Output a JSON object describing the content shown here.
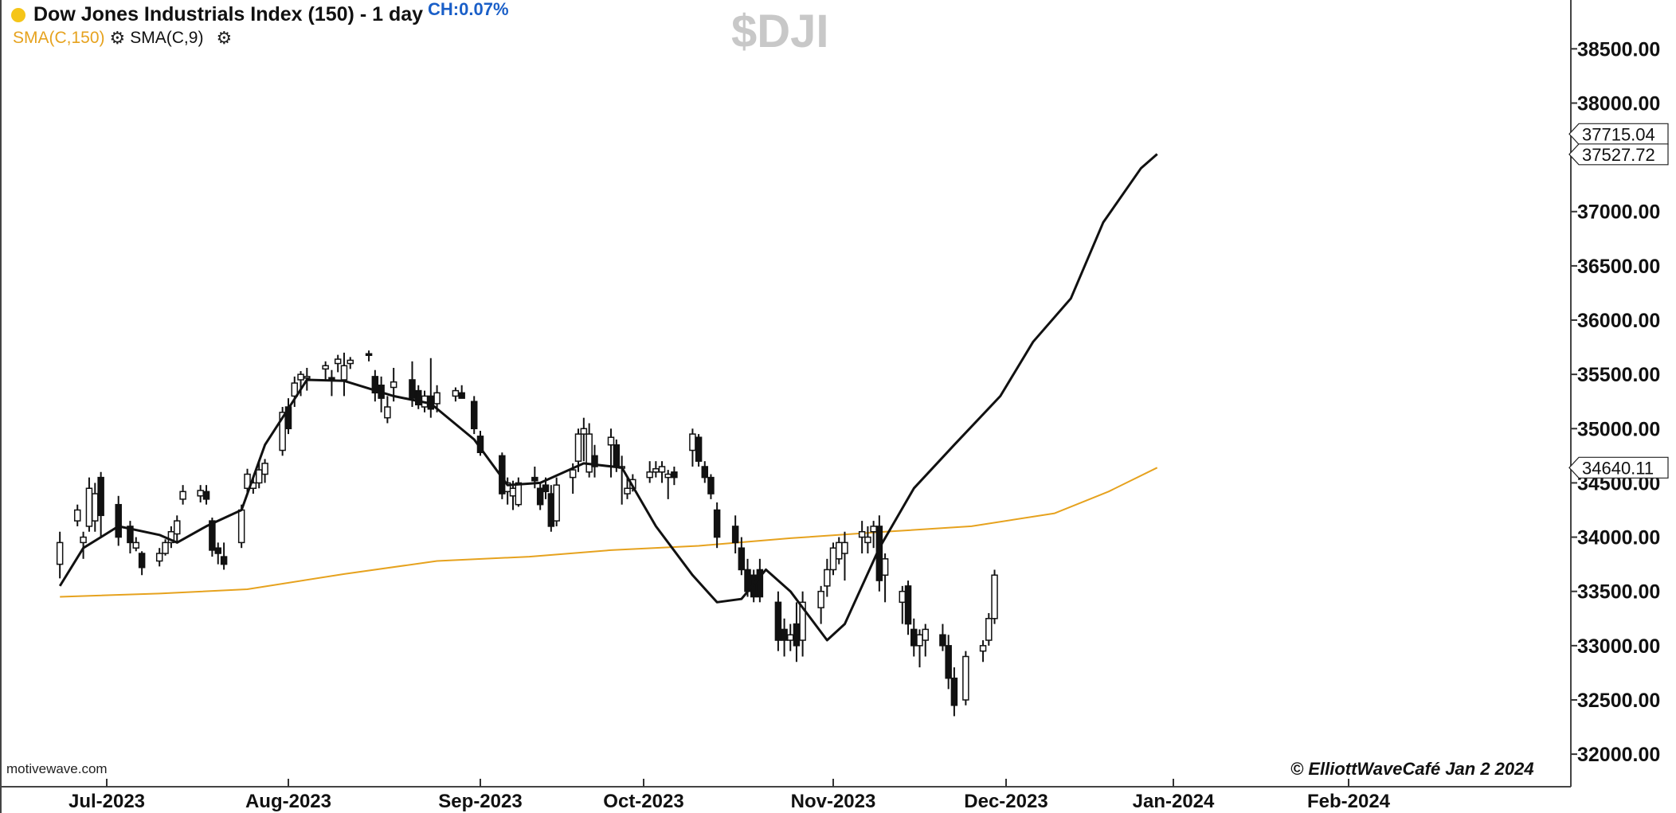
{
  "header": {
    "title": "Dow Jones Industrials Index (150) - 1 day",
    "change": "CH:0.07%",
    "symbol": "$DJI",
    "indicators": [
      {
        "label": "SMA(C,150)",
        "color": "#e6a21e"
      },
      {
        "label": "SMA(C,9)",
        "color": "#111111"
      }
    ]
  },
  "footer": {
    "source": "motivewave.com",
    "copyright": "© ElliottWaveCafé Jan 2 2024"
  },
  "chart_data": {
    "type": "candlestick",
    "title": "Dow Jones Industrials Index (150) - 1 day",
    "symbol": "$DJI",
    "y_axis": {
      "ticks": [
        "32000.00",
        "32500.00",
        "33000.00",
        "33500.00",
        "34000.00",
        "34500.00",
        "35000.00",
        "35500.00",
        "36000.00",
        "36500.00",
        "37000.00",
        "37500.00",
        "38000.00",
        "38500.00"
      ],
      "range": [
        31700,
        38950
      ]
    },
    "x_axis": {
      "ticks": [
        "Jul-2023",
        "Aug-2023",
        "Sep-2023",
        "Oct-2023",
        "Nov-2023",
        "Dec-2023",
        "Jan-2024",
        "Feb-2024"
      ]
    },
    "price_labels": [
      {
        "text": "37715.04",
        "value": 37715.04
      },
      {
        "text": "37527.72",
        "value": 37527.72
      },
      {
        "text": "34640.11",
        "value": 34640.11
      }
    ],
    "series": [
      {
        "name": "SMA(C,150)",
        "color": "#e6a21e",
        "values": [
          {
            "date": "2023-06-23",
            "v": 33450
          },
          {
            "date": "2023-07-10",
            "v": 33480
          },
          {
            "date": "2023-07-25",
            "v": 33520
          },
          {
            "date": "2023-08-10",
            "v": 33660
          },
          {
            "date": "2023-08-25",
            "v": 33780
          },
          {
            "date": "2023-09-10",
            "v": 33820
          },
          {
            "date": "2023-09-25",
            "v": 33880
          },
          {
            "date": "2023-10-10",
            "v": 33920
          },
          {
            "date": "2023-10-25",
            "v": 33990
          },
          {
            "date": "2023-11-10",
            "v": 34050
          },
          {
            "date": "2023-11-25",
            "v": 34100
          },
          {
            "date": "2023-12-10",
            "v": 34220
          },
          {
            "date": "2023-12-20",
            "v": 34420
          },
          {
            "date": "2023-12-29",
            "v": 34640
          }
        ]
      },
      {
        "name": "SMA(C,9)",
        "color": "#111111",
        "values": [
          {
            "date": "2023-06-23",
            "v": 33550
          },
          {
            "date": "2023-06-27",
            "v": 33900
          },
          {
            "date": "2023-07-03",
            "v": 34100
          },
          {
            "date": "2023-07-10",
            "v": 34020
          },
          {
            "date": "2023-07-13",
            "v": 33950
          },
          {
            "date": "2023-07-18",
            "v": 34100
          },
          {
            "date": "2023-07-24",
            "v": 34250
          },
          {
            "date": "2023-07-28",
            "v": 34850
          },
          {
            "date": "2023-08-04",
            "v": 35450
          },
          {
            "date": "2023-08-10",
            "v": 35440
          },
          {
            "date": "2023-08-18",
            "v": 35300
          },
          {
            "date": "2023-08-24",
            "v": 35230
          },
          {
            "date": "2023-08-31",
            "v": 34900
          },
          {
            "date": "2023-09-06",
            "v": 34480
          },
          {
            "date": "2023-09-12",
            "v": 34500
          },
          {
            "date": "2023-09-20",
            "v": 34680
          },
          {
            "date": "2023-09-27",
            "v": 34640
          },
          {
            "date": "2023-10-03",
            "v": 34100
          },
          {
            "date": "2023-10-09",
            "v": 33650
          },
          {
            "date": "2023-10-13",
            "v": 33400
          },
          {
            "date": "2023-10-17",
            "v": 33430
          },
          {
            "date": "2023-10-21",
            "v": 33700
          },
          {
            "date": "2023-10-25",
            "v": 33500
          },
          {
            "date": "2023-10-31",
            "v": 33050
          },
          {
            "date": "2023-11-03",
            "v": 33200
          },
          {
            "date": "2023-11-09",
            "v": 33900
          },
          {
            "date": "2023-11-15",
            "v": 34450
          },
          {
            "date": "2023-11-22",
            "v": 34850
          },
          {
            "date": "2023-11-30",
            "v": 35300
          },
          {
            "date": "2023-12-06",
            "v": 35800
          },
          {
            "date": "2023-12-13",
            "v": 36200
          },
          {
            "date": "2023-12-19",
            "v": 36900
          },
          {
            "date": "2023-12-26",
            "v": 37400
          },
          {
            "date": "2023-12-29",
            "v": 37530
          }
        ]
      }
    ],
    "candles": [
      {
        "date": "2023-06-23",
        "o": 33750,
        "h": 34050,
        "l": 33620,
        "c": 33950
      },
      {
        "date": "2023-06-26",
        "o": 34150,
        "h": 34300,
        "l": 34100,
        "c": 34250
      },
      {
        "date": "2023-06-27",
        "o": 33950,
        "h": 34050,
        "l": 33800,
        "c": 34000
      },
      {
        "date": "2023-06-28",
        "o": 34100,
        "h": 34550,
        "l": 34050,
        "c": 34450
      },
      {
        "date": "2023-06-29",
        "o": 34150,
        "h": 34500,
        "l": 34050,
        "c": 34400
      },
      {
        "date": "2023-06-30",
        "o": 34550,
        "h": 34600,
        "l": 34000,
        "c": 34200
      },
      {
        "date": "2023-07-03",
        "o": 34300,
        "h": 34380,
        "l": 33920,
        "c": 34000
      },
      {
        "date": "2023-07-05",
        "o": 34100,
        "h": 34150,
        "l": 33850,
        "c": 33950
      },
      {
        "date": "2023-07-06",
        "o": 33900,
        "h": 34000,
        "l": 33870,
        "c": 33950
      },
      {
        "date": "2023-07-07",
        "o": 33850,
        "h": 33870,
        "l": 33650,
        "c": 33720
      },
      {
        "date": "2023-07-10",
        "o": 33780,
        "h": 33900,
        "l": 33730,
        "c": 33850
      },
      {
        "date": "2023-07-11",
        "o": 33850,
        "h": 33980,
        "l": 33830,
        "c": 33950
      },
      {
        "date": "2023-07-12",
        "o": 33950,
        "h": 34100,
        "l": 33900,
        "c": 34050
      },
      {
        "date": "2023-07-13",
        "o": 34030,
        "h": 34200,
        "l": 33950,
        "c": 34150
      },
      {
        "date": "2023-07-14",
        "o": 34350,
        "h": 34480,
        "l": 34300,
        "c": 34420
      },
      {
        "date": "2023-07-17",
        "o": 34380,
        "h": 34480,
        "l": 34320,
        "c": 34430
      },
      {
        "date": "2023-07-18",
        "o": 34420,
        "h": 34480,
        "l": 34300,
        "c": 34350
      },
      {
        "date": "2023-07-19",
        "o": 34150,
        "h": 34180,
        "l": 33820,
        "c": 33880
      },
      {
        "date": "2023-07-20",
        "o": 33900,
        "h": 33950,
        "l": 33750,
        "c": 33850
      },
      {
        "date": "2023-07-21",
        "o": 33820,
        "h": 33950,
        "l": 33700,
        "c": 33750
      },
      {
        "date": "2023-07-24",
        "o": 33950,
        "h": 34300,
        "l": 33900,
        "c": 34250
      },
      {
        "date": "2023-07-25",
        "o": 34450,
        "h": 34630,
        "l": 34400,
        "c": 34580
      },
      {
        "date": "2023-07-26",
        "o": 34450,
        "h": 34550,
        "l": 34400,
        "c": 34500
      },
      {
        "date": "2023-07-27",
        "o": 34500,
        "h": 34700,
        "l": 34450,
        "c": 34620
      },
      {
        "date": "2023-07-28",
        "o": 34580,
        "h": 34720,
        "l": 34500,
        "c": 34680
      },
      {
        "date": "2023-07-31",
        "o": 34800,
        "h": 35200,
        "l": 34750,
        "c": 35150
      },
      {
        "date": "2023-08-01",
        "o": 35200,
        "h": 35280,
        "l": 34950,
        "c": 35000
      },
      {
        "date": "2023-08-02",
        "o": 35300,
        "h": 35480,
        "l": 35200,
        "c": 35420
      },
      {
        "date": "2023-08-03",
        "o": 35450,
        "h": 35530,
        "l": 35300,
        "c": 35500
      },
      {
        "date": "2023-08-04",
        "o": 35480,
        "h": 35560,
        "l": 35350,
        "c": 35480
      },
      {
        "date": "2023-08-07",
        "o": 35550,
        "h": 35620,
        "l": 35450,
        "c": 35580
      },
      {
        "date": "2023-08-08",
        "o": 35470,
        "h": 35540,
        "l": 35300,
        "c": 35450
      },
      {
        "date": "2023-08-09",
        "o": 35600,
        "h": 35680,
        "l": 35520,
        "c": 35640
      },
      {
        "date": "2023-08-10",
        "o": 35450,
        "h": 35700,
        "l": 35300,
        "c": 35580
      },
      {
        "date": "2023-08-11",
        "o": 35600,
        "h": 35660,
        "l": 35550,
        "c": 35630
      },
      {
        "date": "2023-08-14",
        "o": 35690,
        "h": 35720,
        "l": 35620,
        "c": 35680
      },
      {
        "date": "2023-08-15",
        "o": 35480,
        "h": 35540,
        "l": 35250,
        "c": 35330
      },
      {
        "date": "2023-08-16",
        "o": 35400,
        "h": 35480,
        "l": 35150,
        "c": 35280
      },
      {
        "date": "2023-08-17",
        "o": 35100,
        "h": 35300,
        "l": 35050,
        "c": 35200
      },
      {
        "date": "2023-08-18",
        "o": 35380,
        "h": 35560,
        "l": 35250,
        "c": 35430
      },
      {
        "date": "2023-08-21",
        "o": 35450,
        "h": 35620,
        "l": 35200,
        "c": 35280
      },
      {
        "date": "2023-08-22",
        "o": 35350,
        "h": 35400,
        "l": 35180,
        "c": 35220
      },
      {
        "date": "2023-08-23",
        "o": 35200,
        "h": 35350,
        "l": 35150,
        "c": 35300
      },
      {
        "date": "2023-08-24",
        "o": 35300,
        "h": 35650,
        "l": 35100,
        "c": 35180
      },
      {
        "date": "2023-08-25",
        "o": 35230,
        "h": 35400,
        "l": 35150,
        "c": 35330
      },
      {
        "date": "2023-08-28",
        "o": 35300,
        "h": 35380,
        "l": 35250,
        "c": 35350
      },
      {
        "date": "2023-08-29",
        "o": 35330,
        "h": 35400,
        "l": 35280,
        "c": 35280
      },
      {
        "date": "2023-08-31",
        "o": 35250,
        "h": 35300,
        "l": 34950,
        "c": 35000
      },
      {
        "date": "2023-09-01",
        "o": 34930,
        "h": 34980,
        "l": 34750,
        "c": 34780
      },
      {
        "date": "2023-09-05",
        "o": 34750,
        "h": 34780,
        "l": 34350,
        "c": 34400
      },
      {
        "date": "2023-09-06",
        "o": 34420,
        "h": 34550,
        "l": 34300,
        "c": 34500
      },
      {
        "date": "2023-09-07",
        "o": 34380,
        "h": 34520,
        "l": 34250,
        "c": 34450
      },
      {
        "date": "2023-09-08",
        "o": 34300,
        "h": 34550,
        "l": 34280,
        "c": 34500
      },
      {
        "date": "2023-09-11",
        "o": 34550,
        "h": 34650,
        "l": 34450,
        "c": 34520
      },
      {
        "date": "2023-09-12",
        "o": 34450,
        "h": 34500,
        "l": 34250,
        "c": 34300
      },
      {
        "date": "2023-09-13",
        "o": 34480,
        "h": 34550,
        "l": 34350,
        "c": 34420
      },
      {
        "date": "2023-09-14",
        "o": 34400,
        "h": 34480,
        "l": 34050,
        "c": 34100
      },
      {
        "date": "2023-09-15",
        "o": 34150,
        "h": 34550,
        "l": 34100,
        "c": 34480
      },
      {
        "date": "2023-09-18",
        "o": 34550,
        "h": 34680,
        "l": 34400,
        "c": 34620
      },
      {
        "date": "2023-09-19",
        "o": 34700,
        "h": 35000,
        "l": 34600,
        "c": 34950
      },
      {
        "date": "2023-09-20",
        "o": 34950,
        "h": 35100,
        "l": 34700,
        "c": 35000
      },
      {
        "date": "2023-09-21",
        "o": 34600,
        "h": 35050,
        "l": 34550,
        "c": 34950
      },
      {
        "date": "2023-09-22",
        "o": 34750,
        "h": 34850,
        "l": 34550,
        "c": 34650
      },
      {
        "date": "2023-09-25",
        "o": 34850,
        "h": 35000,
        "l": 34550,
        "c": 34920
      },
      {
        "date": "2023-09-26",
        "o": 34850,
        "h": 34900,
        "l": 34600,
        "c": 34650
      },
      {
        "date": "2023-09-27",
        "o": 34650,
        "h": 34750,
        "l": 34300,
        "c": 34650
      },
      {
        "date": "2023-09-28",
        "o": 34400,
        "h": 34550,
        "l": 34350,
        "c": 34450
      },
      {
        "date": "2023-09-29",
        "o": 34450,
        "h": 34580,
        "l": 34420,
        "c": 34530
      },
      {
        "date": "2023-10-02",
        "o": 34550,
        "h": 34700,
        "l": 34500,
        "c": 34600
      },
      {
        "date": "2023-10-03",
        "o": 34600,
        "h": 34700,
        "l": 34550,
        "c": 34630
      },
      {
        "date": "2023-10-04",
        "o": 34600,
        "h": 34700,
        "l": 34500,
        "c": 34650
      },
      {
        "date": "2023-10-05",
        "o": 34550,
        "h": 34620,
        "l": 34350,
        "c": 34580
      },
      {
        "date": "2023-10-06",
        "o": 34600,
        "h": 34650,
        "l": 34480,
        "c": 34550
      },
      {
        "date": "2023-10-09",
        "o": 34800,
        "h": 35000,
        "l": 34650,
        "c": 34950
      },
      {
        "date": "2023-10-10",
        "o": 34920,
        "h": 34950,
        "l": 34650,
        "c": 34700
      },
      {
        "date": "2023-10-11",
        "o": 34650,
        "h": 34700,
        "l": 34500,
        "c": 34550
      },
      {
        "date": "2023-10-12",
        "o": 34550,
        "h": 34580,
        "l": 34350,
        "c": 34400
      },
      {
        "date": "2023-10-13",
        "o": 34250,
        "h": 34320,
        "l": 33900,
        "c": 34000
      },
      {
        "date": "2023-10-16",
        "o": 34100,
        "h": 34200,
        "l": 33850,
        "c": 33950
      },
      {
        "date": "2023-10-17",
        "o": 33900,
        "h": 34000,
        "l": 33650,
        "c": 33700
      },
      {
        "date": "2023-10-18",
        "o": 33700,
        "h": 33800,
        "l": 33450,
        "c": 33500
      },
      {
        "date": "2023-10-19",
        "o": 33650,
        "h": 33700,
        "l": 33400,
        "c": 33450
      },
      {
        "date": "2023-10-20",
        "o": 33700,
        "h": 33800,
        "l": 33400,
        "c": 33450
      },
      {
        "date": "2023-10-23",
        "o": 33400,
        "h": 33500,
        "l": 32950,
        "c": 33050
      },
      {
        "date": "2023-10-24",
        "o": 33150,
        "h": 33250,
        "l": 32900,
        "c": 33050
      },
      {
        "date": "2023-10-25",
        "o": 33050,
        "h": 33200,
        "l": 32950,
        "c": 33100
      },
      {
        "date": "2023-10-26",
        "o": 33200,
        "h": 33400,
        "l": 32850,
        "c": 33000
      },
      {
        "date": "2023-10-27",
        "o": 33050,
        "h": 33500,
        "l": 32900,
        "c": 33400
      },
      {
        "date": "2023-10-30",
        "o": 33350,
        "h": 33550,
        "l": 33200,
        "c": 33500
      },
      {
        "date": "2023-10-31",
        "o": 33550,
        "h": 33800,
        "l": 33450,
        "c": 33700
      },
      {
        "date": "2023-11-01",
        "o": 33700,
        "h": 33950,
        "l": 33650,
        "c": 33900
      },
      {
        "date": "2023-11-02",
        "o": 33800,
        "h": 34000,
        "l": 33750,
        "c": 33950
      },
      {
        "date": "2023-11-03",
        "o": 33850,
        "h": 34050,
        "l": 33600,
        "c": 33950
      },
      {
        "date": "2023-11-06",
        "o": 34000,
        "h": 34150,
        "l": 33850,
        "c": 34050
      },
      {
        "date": "2023-11-07",
        "o": 33950,
        "h": 34100,
        "l": 33850,
        "c": 34000
      },
      {
        "date": "2023-11-08",
        "o": 34050,
        "h": 34150,
        "l": 33900,
        "c": 34100
      },
      {
        "date": "2023-11-09",
        "o": 34100,
        "h": 34200,
        "l": 33500,
        "c": 33600
      },
      {
        "date": "2023-11-10",
        "o": 33650,
        "h": 33850,
        "l": 33400,
        "c": 33800
      },
      {
        "date": "2023-11-13",
        "o": 33400,
        "h": 33550,
        "l": 33200,
        "c": 33500
      },
      {
        "date": "2023-11-14",
        "o": 33550,
        "h": 33600,
        "l": 33100,
        "c": 33200
      },
      {
        "date": "2023-11-15",
        "o": 33150,
        "h": 33250,
        "l": 32900,
        "c": 33000
      },
      {
        "date": "2023-11-16",
        "o": 33000,
        "h": 33150,
        "l": 32800,
        "c": 33100
      },
      {
        "date": "2023-11-17",
        "o": 33050,
        "h": 33200,
        "l": 32900,
        "c": 33150
      },
      {
        "date": "2023-11-20",
        "o": 33100,
        "h": 33200,
        "l": 32950,
        "c": 33000
      },
      {
        "date": "2023-11-21",
        "o": 33000,
        "h": 33100,
        "l": 32600,
        "c": 32700
      },
      {
        "date": "2023-11-22",
        "o": 32700,
        "h": 32800,
        "l": 32350,
        "c": 32450
      },
      {
        "date": "2023-11-24",
        "o": 32500,
        "h": 32950,
        "l": 32450,
        "c": 32900
      },
      {
        "date": "2023-11-27",
        "o": 32950,
        "h": 33050,
        "l": 32850,
        "c": 33000
      },
      {
        "date": "2023-11-28",
        "o": 33050,
        "h": 33300,
        "l": 33000,
        "c": 33250
      },
      {
        "date": "2023-11-29",
        "o": 33250,
        "h": 33700,
        "l": 33200,
        "c": 33650
      }
    ]
  }
}
